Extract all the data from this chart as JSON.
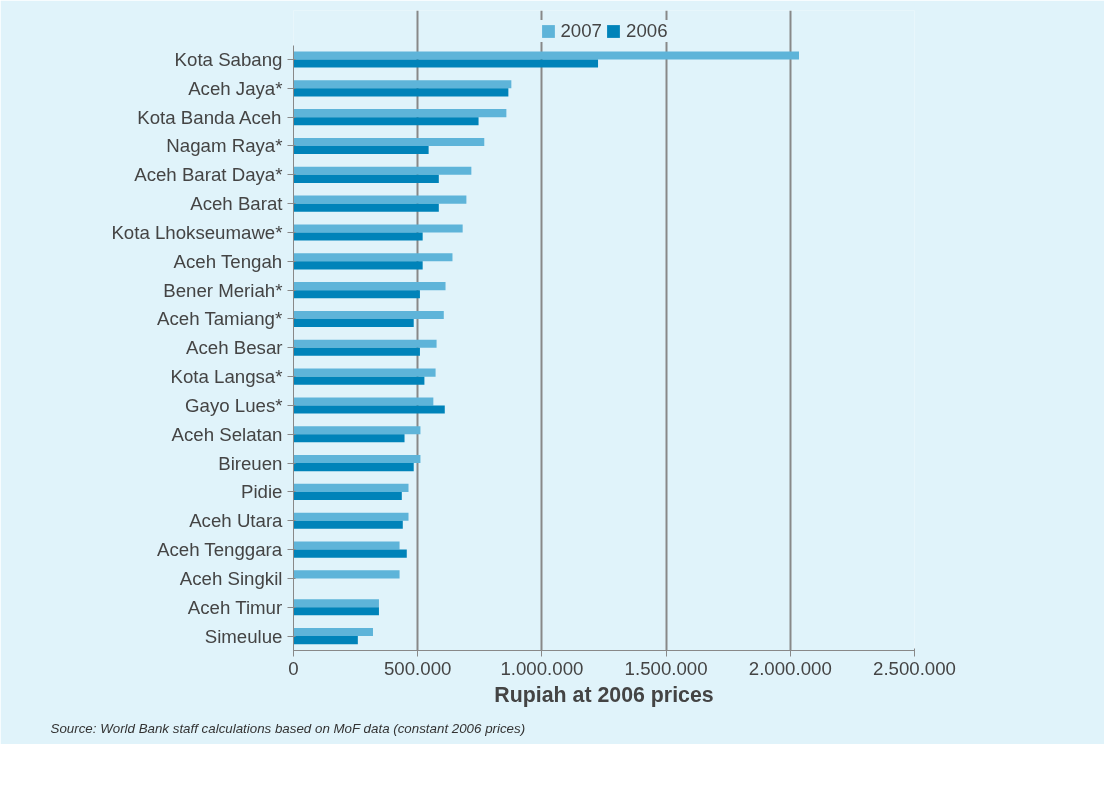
{
  "chart_data": {
    "type": "bar",
    "orientation": "horizontal",
    "xlabel": "Rupiah at 2006 prices",
    "categories": [
      "Kota Sabang",
      "Aceh Jaya*",
      "Kota Banda Aceh",
      "Nagam Raya*",
      "Aceh Barat Daya*",
      "Aceh Barat",
      "Kota Lhokseumawe*",
      "Aceh Tengah",
      "Bener Meriah*",
      "Aceh Tamiang*",
      "Aceh Besar",
      "Kota Langsa*",
      "Gayo Lues*",
      "Aceh Selatan",
      "Bireuen",
      "Pidie",
      "Aceh Utara",
      "Aceh Tenggara",
      "Aceh Singkil",
      "Aceh Timur",
      "Simeulue"
    ],
    "series": [
      {
        "name": "2007",
        "color": "#5eb4d9",
        "values": [
          2035000,
          877000,
          857000,
          768000,
          716000,
          696000,
          681000,
          640000,
          612000,
          605000,
          576000,
          572000,
          563000,
          511000,
          511000,
          463000,
          463000,
          427000,
          427000,
          344000,
          320000
        ]
      },
      {
        "name": "2006",
        "color": "#0083b9",
        "values": [
          1226000,
          865000,
          745000,
          544000,
          585000,
          585000,
          520000,
          520000,
          509000,
          484000,
          509000,
          527000,
          609000,
          447000,
          484000,
          436000,
          440000,
          456000,
          null,
          344000,
          259000
        ]
      }
    ],
    "xlim": [
      0,
      2500000
    ],
    "xticks": [
      {
        "value": 0,
        "label": "0"
      },
      {
        "value": 500000,
        "label": "500.000"
      },
      {
        "value": 1000000,
        "label": "1.000.000"
      },
      {
        "value": 1500000,
        "label": "1.500.000"
      },
      {
        "value": 2000000,
        "label": "2.000.000"
      },
      {
        "value": 2500000,
        "label": "2.500.000"
      }
    ],
    "grid": "x",
    "legend": "top",
    "annotations": [
      "Source: World Bank staff calculations based on MoF data (constant 2006 prices)"
    ]
  }
}
